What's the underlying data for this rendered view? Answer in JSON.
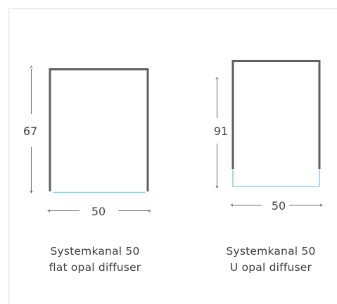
{
  "profiles": [
    {
      "height_label": "67",
      "width_label": "50",
      "caption_line1": "Systemkanal 50",
      "caption_line2": "flat opal diffuser"
    },
    {
      "height_label": "91",
      "width_label": "50",
      "caption_line1": "Systemkanal 50",
      "caption_line2": "U opal diffuser"
    }
  ],
  "colors": {
    "profile": "#5f5f5f",
    "diffuser": "#8fd3e0",
    "dimension_line": "#6a6a6a",
    "frame_border": "#e6e6e6",
    "text": "#444444"
  }
}
